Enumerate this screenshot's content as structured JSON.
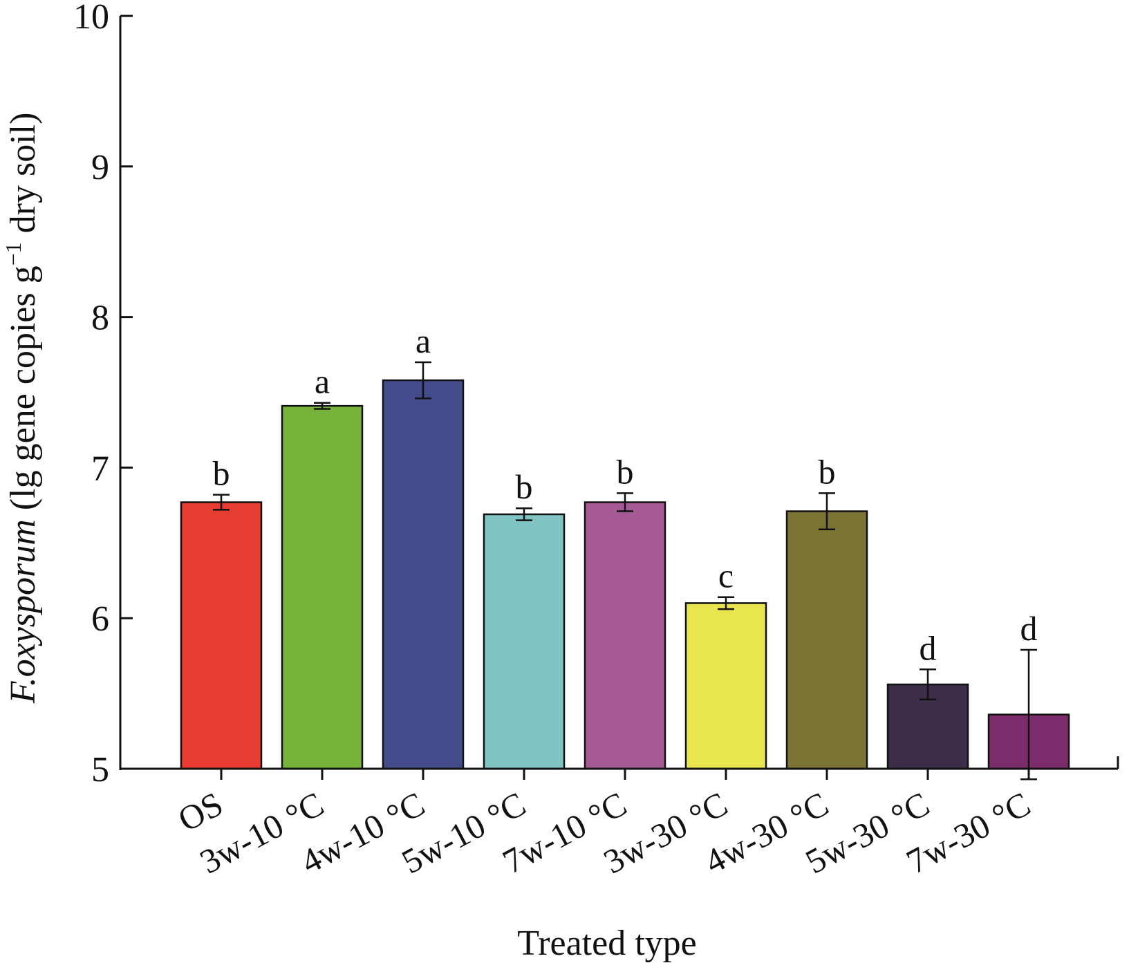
{
  "chart_data": {
    "type": "bar",
    "title": "",
    "xlabel": "Treated type",
    "ylabel": {
      "species": "F.oxysporum",
      "unit_prefix": " (lg gene copies g",
      "unit_sup": "−1",
      "unit_suffix": " dry soil)"
    },
    "ylim": [
      5,
      10
    ],
    "yticks": [
      "5",
      "6",
      "7",
      "8",
      "9",
      "10"
    ],
    "categories": [
      "OS",
      "3w-10 °C",
      "4w-10 °C",
      "5w-10 °C",
      "7w-10 °C",
      "3w-30 °C",
      "4w-30 °C",
      "5w-30 °C",
      "7w-30 °C"
    ],
    "values": [
      6.77,
      7.41,
      7.58,
      6.69,
      6.77,
      6.1,
      6.71,
      5.56,
      5.36
    ],
    "errors": [
      0.05,
      0.02,
      0.12,
      0.04,
      0.06,
      0.04,
      0.12,
      0.1,
      0.43
    ],
    "significance": [
      "b",
      "a",
      "a",
      "b",
      "b",
      "c",
      "b",
      "d",
      "d"
    ],
    "colors": [
      "#e83b32",
      "#77b23a",
      "#434b8b",
      "#7fc3c4",
      "#a55a96",
      "#e9e54f",
      "#7c7435",
      "#3c2e4b",
      "#7a2d6a"
    ],
    "grid": false,
    "legend": "none"
  }
}
